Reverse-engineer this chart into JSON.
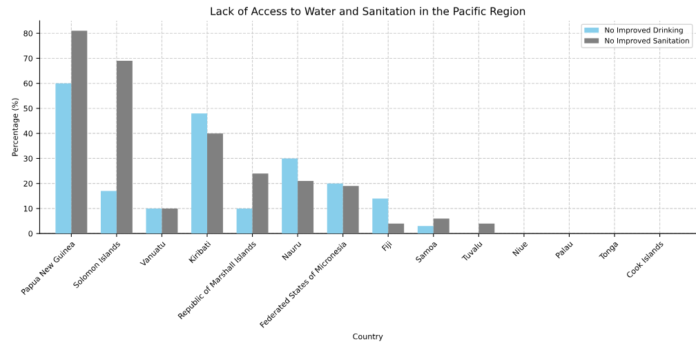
{
  "chart_data": {
    "type": "bar",
    "title": "Lack of Access to Water and Sanitation in the Pacific Region",
    "xlabel": "Country",
    "ylabel": "Percentage (%)",
    "categories": [
      "Papua New Guinea",
      "Solomon Islands",
      "Vanuatu",
      "Kiribati",
      "Republic of Marshall Islands",
      "Nauru",
      "Federated States of Micronesia",
      "Fiji",
      "Samoa",
      "Tuvalu",
      "Niue",
      "Palau",
      "Tonga",
      "Cook Islands"
    ],
    "series": [
      {
        "name": "No Improved Drinking",
        "color": "#87ceeb",
        "values": [
          60,
          17,
          10,
          48,
          10,
          30,
          20,
          14,
          3,
          0,
          0,
          0,
          0,
          0
        ]
      },
      {
        "name": "No Improved Sanitation",
        "color": "#808080",
        "values": [
          81,
          69,
          10,
          40,
          24,
          21,
          19,
          4,
          6,
          4,
          0,
          0,
          0,
          0
        ]
      }
    ],
    "ylim": [
      0,
      85
    ],
    "yticks": [
      0,
      10,
      20,
      30,
      40,
      50,
      60,
      70,
      80
    ],
    "grid": true,
    "legend": "top right"
  }
}
